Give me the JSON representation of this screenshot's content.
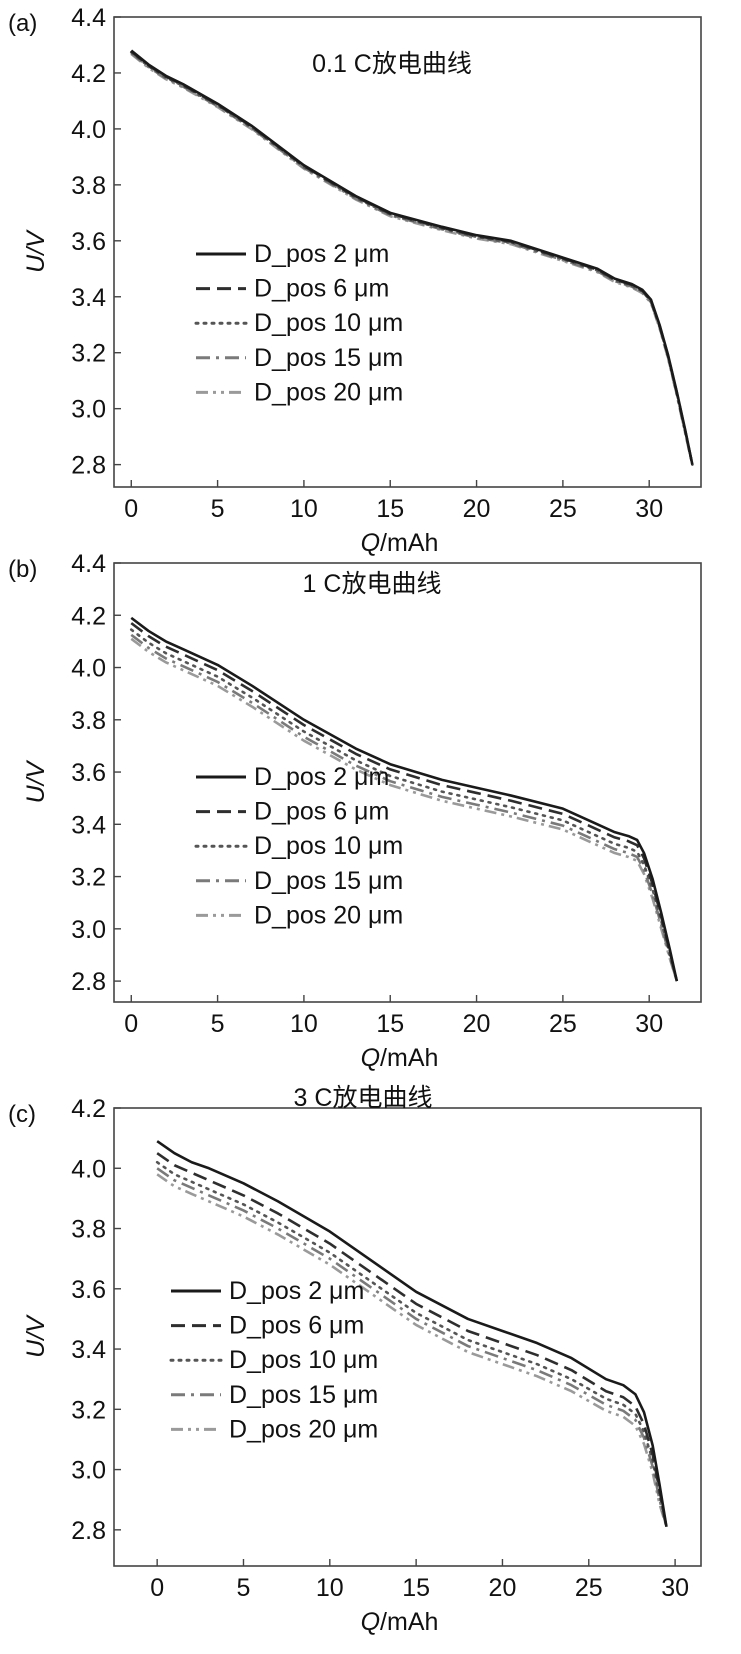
{
  "chart_data": [
    {
      "type": "line",
      "panel_label": "(a)",
      "title": "0.1 C放电曲线",
      "xlabel": "Q/mAh",
      "ylabel": "U/V",
      "xlim": [
        -1,
        33
      ],
      "ylim": [
        2.72,
        4.4
      ],
      "xticks": [
        0,
        5,
        10,
        15,
        20,
        25,
        30
      ],
      "yticks": [
        2.8,
        3.0,
        3.2,
        3.4,
        3.6,
        3.8,
        4.0,
        4.2,
        4.4
      ],
      "ytick_labels": [
        "2.8",
        "3.0",
        "3.2",
        "3.4",
        "3.6",
        "3.8",
        "4.0",
        "4.2",
        "4.4"
      ],
      "grid": false,
      "legend_position": "lower-left",
      "series": [
        {
          "name": "D_pos 2 μm",
          "color": "#1a1a1a",
          "dash": "solid",
          "x": [
            0,
            1,
            2,
            3,
            5,
            7,
            10,
            13,
            15,
            18,
            20,
            22,
            25,
            27,
            28,
            29,
            29.6,
            30.1,
            30.6,
            31.1,
            31.6,
            32.1,
            32.5
          ],
          "y": [
            4.28,
            4.23,
            4.19,
            4.16,
            4.09,
            4.01,
            3.87,
            3.76,
            3.7,
            3.65,
            3.62,
            3.6,
            3.54,
            3.5,
            3.465,
            3.445,
            3.425,
            3.39,
            3.3,
            3.19,
            3.06,
            2.92,
            2.8
          ]
        },
        {
          "name": "D_pos 6 μm",
          "color": "#2e2e2e",
          "dash": "long-dash",
          "x": [
            0,
            1,
            2,
            3,
            5,
            7,
            10,
            13,
            15,
            18,
            20,
            22,
            25,
            27,
            28,
            29,
            29.6,
            30.1,
            30.6,
            31.1,
            31.6,
            32.1,
            32.5
          ],
          "y": [
            4.277,
            4.227,
            4.187,
            4.157,
            4.087,
            4.007,
            3.867,
            3.757,
            3.697,
            3.647,
            3.617,
            3.597,
            3.537,
            3.497,
            3.462,
            3.442,
            3.422,
            3.387,
            3.297,
            3.187,
            3.057,
            2.917,
            2.8
          ]
        },
        {
          "name": "D_pos 10 μm",
          "color": "#555555",
          "dash": "dotted",
          "x": [
            0,
            1,
            2,
            3,
            5,
            7,
            10,
            13,
            15,
            18,
            20,
            22,
            25,
            27,
            28,
            29,
            29.6,
            30.1,
            30.6,
            31.1,
            31.6,
            32.1,
            32.5
          ],
          "y": [
            4.274,
            4.224,
            4.184,
            4.154,
            4.084,
            4.004,
            3.864,
            3.754,
            3.694,
            3.644,
            3.614,
            3.594,
            3.534,
            3.494,
            3.459,
            3.439,
            3.419,
            3.384,
            3.294,
            3.184,
            3.054,
            2.914,
            2.8
          ]
        },
        {
          "name": "D_pos 15 μm",
          "color": "#7a7a7a",
          "dash": "dash-dot",
          "x": [
            0,
            1,
            2,
            3,
            5,
            7,
            10,
            13,
            15,
            18,
            20,
            22,
            25,
            27,
            28,
            29,
            29.6,
            30.1,
            30.6,
            31.1,
            31.6,
            32.1,
            32.5
          ],
          "y": [
            4.271,
            4.221,
            4.181,
            4.151,
            4.081,
            4.001,
            3.861,
            3.751,
            3.691,
            3.641,
            3.611,
            3.591,
            3.531,
            3.491,
            3.456,
            3.436,
            3.416,
            3.381,
            3.291,
            3.181,
            3.051,
            2.911,
            2.8
          ]
        },
        {
          "name": "D_pos 20 μm",
          "color": "#9a9a9a",
          "dash": "dash-dot-dot",
          "x": [
            0,
            1,
            2,
            3,
            5,
            7,
            10,
            13,
            15,
            18,
            20,
            22,
            25,
            27,
            28,
            29,
            29.6,
            30.1,
            30.6,
            31.1,
            31.6,
            32.1,
            32.5
          ],
          "y": [
            4.268,
            4.218,
            4.178,
            4.148,
            4.078,
            3.998,
            3.858,
            3.748,
            3.688,
            3.638,
            3.608,
            3.588,
            3.528,
            3.488,
            3.453,
            3.433,
            3.413,
            3.378,
            3.288,
            3.178,
            3.048,
            2.908,
            2.8
          ]
        }
      ]
    },
    {
      "type": "line",
      "panel_label": "(b)",
      "title": "1 C放电曲线",
      "xlabel": "Q/mAh",
      "ylabel": "U/V",
      "xlim": [
        -1,
        33
      ],
      "ylim": [
        2.72,
        4.4
      ],
      "xticks": [
        0,
        5,
        10,
        15,
        20,
        25,
        30
      ],
      "yticks": [
        2.8,
        3.0,
        3.2,
        3.4,
        3.6,
        3.8,
        4.0,
        4.2,
        4.4
      ],
      "ytick_labels": [
        "2.8",
        "3.0",
        "3.2",
        "3.4",
        "3.6",
        "3.8",
        "4.0",
        "4.2",
        "4.4"
      ],
      "grid": false,
      "legend_position": "lower-left",
      "series": [
        {
          "name": "D_pos 2 μm",
          "color": "#1a1a1a",
          "dash": "solid",
          "x": [
            0,
            1,
            2,
            3,
            5,
            7,
            10,
            13,
            15,
            18,
            20,
            22,
            25,
            27,
            28,
            28.8,
            29.3,
            29.7,
            30.2,
            30.7,
            31.2,
            31.6
          ],
          "y": [
            4.19,
            4.14,
            4.1,
            4.07,
            4.01,
            3.93,
            3.8,
            3.69,
            3.63,
            3.57,
            3.54,
            3.51,
            3.46,
            3.4,
            3.37,
            3.355,
            3.34,
            3.29,
            3.19,
            3.06,
            2.92,
            2.8
          ]
        },
        {
          "name": "D_pos 6 μm",
          "color": "#2e2e2e",
          "dash": "long-dash",
          "x": [
            0,
            1,
            2,
            3,
            5,
            7,
            10,
            13,
            15,
            18,
            20,
            22,
            25,
            27,
            28,
            28.8,
            29.3,
            29.7,
            30.2,
            30.7,
            31.2,
            31.6
          ],
          "y": [
            4.17,
            4.12,
            4.08,
            4.05,
            3.99,
            3.91,
            3.78,
            3.67,
            3.61,
            3.55,
            3.52,
            3.49,
            3.44,
            3.38,
            3.35,
            3.335,
            3.32,
            3.27,
            3.17,
            3.045,
            2.91,
            2.8
          ]
        },
        {
          "name": "D_pos 10 μm",
          "color": "#555555",
          "dash": "dotted",
          "x": [
            0,
            1,
            2,
            3,
            5,
            7,
            10,
            13,
            15,
            18,
            20,
            22,
            25,
            27,
            28,
            28.8,
            29.3,
            29.7,
            30.2,
            30.7,
            31.2,
            31.6
          ],
          "y": [
            4.145,
            4.095,
            4.055,
            4.025,
            3.965,
            3.885,
            3.755,
            3.645,
            3.585,
            3.525,
            3.495,
            3.465,
            3.415,
            3.355,
            3.325,
            3.31,
            3.295,
            3.245,
            3.15,
            3.03,
            2.9,
            2.8
          ]
        },
        {
          "name": "D_pos 15 μm",
          "color": "#7a7a7a",
          "dash": "dash-dot",
          "x": [
            0,
            1,
            2,
            3,
            5,
            7,
            10,
            13,
            15,
            18,
            20,
            22,
            25,
            27,
            28,
            28.8,
            29.3,
            29.7,
            30.2,
            30.7,
            31.2,
            31.6
          ],
          "y": [
            4.125,
            4.075,
            4.035,
            4.005,
            3.945,
            3.865,
            3.735,
            3.625,
            3.565,
            3.505,
            3.475,
            3.445,
            3.395,
            3.335,
            3.305,
            3.29,
            3.275,
            3.225,
            3.13,
            3.015,
            2.89,
            2.8
          ]
        },
        {
          "name": "D_pos 20 μm",
          "color": "#9a9a9a",
          "dash": "dash-dot-dot",
          "x": [
            0,
            1,
            2,
            3,
            5,
            7,
            10,
            13,
            15,
            18,
            20,
            22,
            25,
            27,
            28,
            28.8,
            29.3,
            29.7,
            30.2,
            30.7,
            31.2,
            31.6
          ],
          "y": [
            4.11,
            4.06,
            4.02,
            3.99,
            3.93,
            3.85,
            3.72,
            3.61,
            3.55,
            3.49,
            3.46,
            3.43,
            3.38,
            3.32,
            3.29,
            3.275,
            3.26,
            3.21,
            3.115,
            3.0,
            2.885,
            2.8
          ]
        }
      ]
    },
    {
      "type": "line",
      "panel_label": "(c)",
      "title": "3 C放电曲线",
      "xlabel": "Q/mAh",
      "ylabel": "U/V",
      "xlim": [
        -2.5,
        31.5
      ],
      "ylim": [
        2.68,
        4.2
      ],
      "xticks": [
        0,
        5,
        10,
        15,
        20,
        25,
        30
      ],
      "yticks": [
        2.8,
        3.0,
        3.2,
        3.4,
        3.6,
        3.8,
        4.0,
        4.2
      ],
      "ytick_labels": [
        "2.8",
        "3.0",
        "3.2",
        "3.4",
        "3.6",
        "3.8",
        "4.0",
        "4.2"
      ],
      "grid": false,
      "legend_position": "lower-left",
      "series": [
        {
          "name": "D_pos 2 μm",
          "color": "#1a1a1a",
          "dash": "solid",
          "x": [
            0,
            1,
            2,
            3,
            5,
            7,
            10,
            13,
            15,
            18,
            20,
            22,
            24,
            26,
            27,
            27.7,
            28.2,
            28.7,
            29.1,
            29.5
          ],
          "y": [
            4.09,
            4.05,
            4.02,
            4.0,
            3.95,
            3.89,
            3.79,
            3.67,
            3.59,
            3.5,
            3.46,
            3.42,
            3.37,
            3.3,
            3.28,
            3.25,
            3.19,
            3.08,
            2.95,
            2.81
          ]
        },
        {
          "name": "D_pos 6 μm",
          "color": "#2e2e2e",
          "dash": "long-dash",
          "x": [
            0,
            1,
            2,
            3,
            5,
            7,
            10,
            13,
            15,
            18,
            20,
            22,
            24,
            26,
            27,
            27.7,
            28.2,
            28.7,
            29.1,
            29.5
          ],
          "y": [
            4.05,
            4.01,
            3.985,
            3.96,
            3.91,
            3.85,
            3.75,
            3.63,
            3.55,
            3.46,
            3.42,
            3.38,
            3.33,
            3.26,
            3.24,
            3.21,
            3.15,
            3.05,
            2.93,
            2.81
          ]
        },
        {
          "name": "D_pos 10 μm",
          "color": "#555555",
          "dash": "dotted",
          "x": [
            0,
            1,
            2,
            3,
            5,
            7,
            10,
            13,
            15,
            18,
            20,
            22,
            24,
            26,
            27,
            27.7,
            28.2,
            28.7,
            29.1,
            29.5
          ],
          "y": [
            4.02,
            3.98,
            3.955,
            3.93,
            3.88,
            3.82,
            3.72,
            3.6,
            3.52,
            3.43,
            3.39,
            3.35,
            3.3,
            3.235,
            3.215,
            3.185,
            3.125,
            3.03,
            2.915,
            2.81
          ]
        },
        {
          "name": "D_pos 15 μm",
          "color": "#7a7a7a",
          "dash": "dash-dot",
          "x": [
            0,
            1,
            2,
            3,
            5,
            7,
            10,
            13,
            15,
            18,
            20,
            22,
            24,
            26,
            27,
            27.7,
            28.2,
            28.7,
            29.1,
            29.5
          ],
          "y": [
            4.0,
            3.96,
            3.935,
            3.91,
            3.86,
            3.8,
            3.7,
            3.58,
            3.5,
            3.41,
            3.37,
            3.33,
            3.28,
            3.215,
            3.195,
            3.165,
            3.105,
            3.01,
            2.9,
            2.81
          ]
        },
        {
          "name": "D_pos 20 μm",
          "color": "#9a9a9a",
          "dash": "dash-dot-dot",
          "x": [
            0,
            1,
            2,
            3,
            5,
            7,
            10,
            13,
            15,
            18,
            20,
            22,
            24,
            26,
            27,
            27.7,
            28.2,
            28.7,
            29.1,
            29.5
          ],
          "y": [
            3.98,
            3.94,
            3.915,
            3.89,
            3.84,
            3.78,
            3.68,
            3.56,
            3.48,
            3.39,
            3.35,
            3.31,
            3.26,
            3.195,
            3.175,
            3.145,
            3.085,
            2.99,
            2.885,
            2.81
          ]
        }
      ]
    }
  ]
}
